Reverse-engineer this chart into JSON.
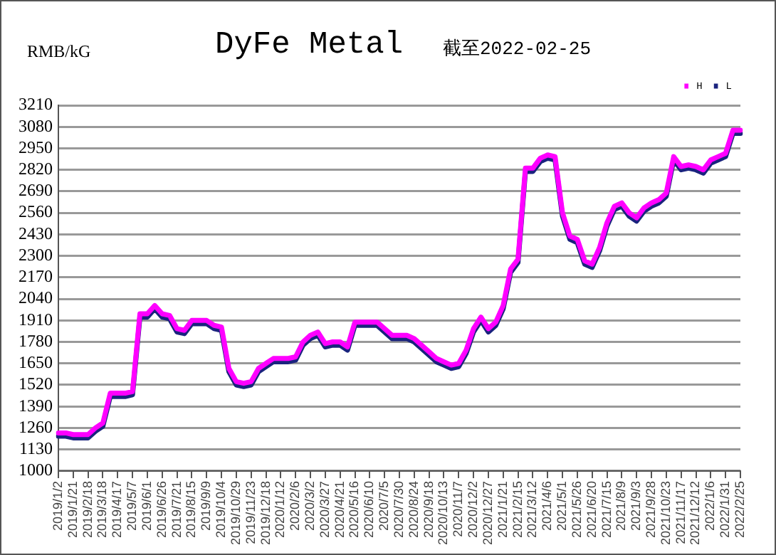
{
  "chart_data": {
    "type": "line",
    "title": "DyFe Metal",
    "subtitle": "截至2022-02-25",
    "ylabel": "RMB/kG",
    "categories": [
      "2019/1/2",
      null,
      "2019/1/21",
      null,
      "2019/2/18",
      null,
      "2019/3/18",
      null,
      "2019/4/17",
      null,
      "2019/5/7",
      null,
      "2019/6/1",
      null,
      "2019/6/26",
      null,
      "2019/7/21",
      null,
      "2019/8/15",
      null,
      "2019/9/9",
      null,
      "2019/10/4",
      null,
      "2019/10/29",
      null,
      "2019/11/23",
      null,
      "2019/12/18",
      null,
      "2020/1/12",
      null,
      "2020/2/6",
      null,
      "2020/3/2",
      null,
      "2020/3/27",
      null,
      "2020/4/21",
      null,
      "2020/5/16",
      null,
      "2020/6/10",
      null,
      "2020/7/5",
      null,
      "2020/7/30",
      null,
      "2020/8/24",
      null,
      "2020/9/18",
      null,
      "2020/10/13",
      null,
      "2020/11/7",
      null,
      "2020/12/2",
      null,
      "2020/12/27",
      null,
      "2021/1/21",
      null,
      "2021/2/15",
      null,
      "2021/3/12",
      null,
      "2021/4/6",
      null,
      "2021/5/1",
      null,
      "2021/5/26",
      null,
      "2021/6/20",
      null,
      "2021/7/15",
      null,
      "2021/8/9",
      null,
      "2021/9/3",
      null,
      "2021/9/28",
      null,
      "2021/10/23",
      null,
      "2021/11/17",
      null,
      "2021/12/12",
      null,
      "2022/1/6",
      null,
      "2022/1/31",
      null,
      "2022/2/25"
    ],
    "series": [
      {
        "name": "L",
        "color": "#1a237e",
        "values": [
          1210,
          1210,
          1200,
          1200,
          1200,
          1240,
          1270,
          1450,
          1450,
          1450,
          1460,
          1930,
          1930,
          1980,
          1930,
          1920,
          1840,
          1830,
          1890,
          1890,
          1890,
          1860,
          1850,
          1600,
          1520,
          1510,
          1520,
          1600,
          1630,
          1660,
          1660,
          1660,
          1670,
          1760,
          1800,
          1820,
          1750,
          1760,
          1760,
          1730,
          1880,
          1880,
          1880,
          1880,
          1840,
          1800,
          1800,
          1800,
          1780,
          1740,
          1700,
          1660,
          1640,
          1620,
          1630,
          1710,
          1840,
          1910,
          1840,
          1880,
          1980,
          2200,
          2260,
          2810,
          2810,
          2870,
          2890,
          2880,
          2540,
          2400,
          2380,
          2250,
          2230,
          2330,
          2480,
          2580,
          2600,
          2540,
          2510,
          2570,
          2600,
          2620,
          2660,
          2880,
          2820,
          2830,
          2820,
          2800,
          2860,
          2880,
          2900,
          3040,
          3040
        ]
      },
      {
        "name": "H",
        "color": "#ff00ff",
        "values": [
          1230,
          1230,
          1220,
          1220,
          1220,
          1260,
          1290,
          1470,
          1470,
          1470,
          1480,
          1950,
          1950,
          2000,
          1950,
          1940,
          1860,
          1850,
          1910,
          1910,
          1910,
          1880,
          1870,
          1620,
          1540,
          1530,
          1540,
          1620,
          1650,
          1680,
          1680,
          1680,
          1690,
          1780,
          1820,
          1840,
          1770,
          1780,
          1780,
          1750,
          1900,
          1900,
          1900,
          1900,
          1860,
          1820,
          1820,
          1820,
          1800,
          1760,
          1720,
          1680,
          1660,
          1640,
          1650,
          1730,
          1860,
          1930,
          1860,
          1900,
          2000,
          2220,
          2280,
          2830,
          2830,
          2890,
          2910,
          2900,
          2560,
          2420,
          2400,
          2270,
          2250,
          2350,
          2500,
          2600,
          2620,
          2560,
          2530,
          2590,
          2620,
          2640,
          2680,
          2900,
          2840,
          2850,
          2840,
          2820,
          2880,
          2900,
          2920,
          3060,
          3060
        ]
      }
    ],
    "ylim": [
      1000,
      3210
    ],
    "yticks": [
      1000,
      1130,
      1260,
      1390,
      1520,
      1650,
      1780,
      1910,
      2040,
      2170,
      2300,
      2430,
      2560,
      2690,
      2820,
      2950,
      3080,
      3210
    ],
    "grid": "y",
    "legend": "top right",
    "marker": "none",
    "line_style": "solid"
  }
}
